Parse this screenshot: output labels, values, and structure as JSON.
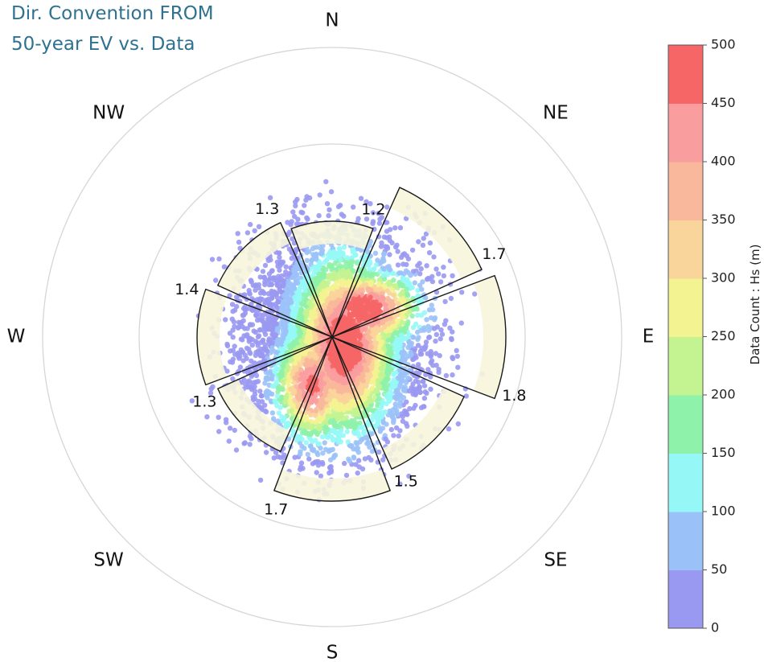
{
  "header": {
    "title_line1": "Dir. Convention FROM",
    "title_line2": "50-year EV vs. Data"
  },
  "chart_data": {
    "type": "polar-density-with-sectors",
    "direction_convention": "FROM",
    "compass_labels": [
      "N",
      "NE",
      "E",
      "SE",
      "S",
      "SW",
      "W",
      "NW"
    ],
    "colorbar": {
      "label": "Data Count : Hs (m)",
      "ticks": [
        "0",
        "50",
        "100",
        "150",
        "200",
        "250",
        "300",
        "350",
        "400",
        "450",
        "500"
      ],
      "min": 0,
      "max": 500,
      "colors": [
        "#9a99f2",
        "#9bc2f8",
        "#95f8f6",
        "#8ff2aa",
        "#c3f491",
        "#f4f391",
        "#f9d49b",
        "#f9b89b",
        "#f99d9f",
        "#f66666"
      ]
    },
    "sector_width_deg": 45,
    "sectors": [
      {
        "center_deg": 0,
        "value": 1.2,
        "label": "1.2"
      },
      {
        "center_deg": 45,
        "value": 1.7,
        "label": "1.7"
      },
      {
        "center_deg": 90,
        "value": 1.8,
        "label": "1.8"
      },
      {
        "center_deg": 135,
        "value": 1.5,
        "label": "1.5"
      },
      {
        "center_deg": 180,
        "value": 1.7,
        "label": "1.7"
      },
      {
        "center_deg": 225,
        "value": 1.3,
        "label": "1.3"
      },
      {
        "center_deg": 270,
        "value": 1.4,
        "label": "1.4"
      },
      {
        "center_deg": 315,
        "value": 1.3,
        "label": "1.3"
      }
    ],
    "radial_rings": [
      2,
      3
    ],
    "sector_fill": "#f7f5dc",
    "grid": true
  }
}
